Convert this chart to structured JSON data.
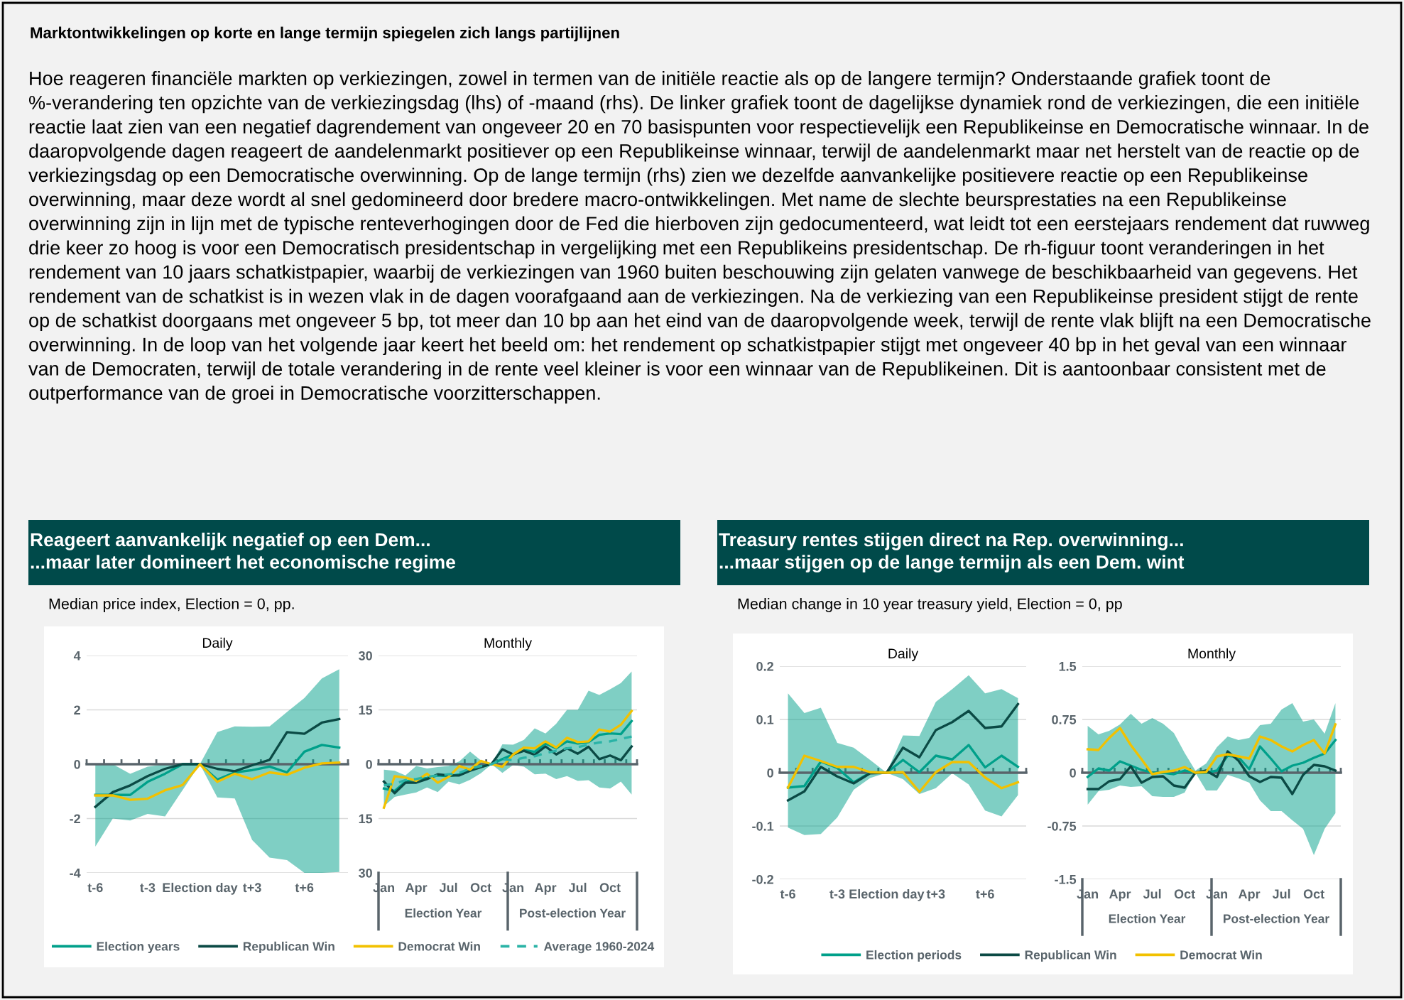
{
  "chart_data": [
    {
      "type": "other",
      "title": "Marktontwikkelingen op korte en lange termijn spiegelen zich langs partijlijnen",
      "annotations": [
        "Hoe reageren financiële markten op verkiezingen, zowel in termen van de initiële reactie als op de langere termijn? Onderstaande grafiek toont de %-verandering ten opzichte van de verkiezingsdag (lhs) of -maand (rhs). De linker grafiek toont de dagelijkse dynamiek rond de verkiezingen, die een initiële reactie laat zien van een negatief dagrendement van ongeveer 20 en 70 basispunten voor respectievelijk een Republikeinse en Democratische winnaar. In de daaropvolgende dagen reageert de aandelenmarkt positiever op een Republikeinse winnaar, terwijl de aandelenmarkt maar net herstelt van de reactie op de verkiezingsdag op een Democratische overwinning. Op de lange termijn (rhs) zien we dezelfde aanvankelijke positievere reactie op een Republikeinse overwinning, maar deze wordt al snel gedomineerd door bredere macro-ontwikkelingen. Met name de slechte beursprestaties na een Republikeinse overwinning zijn in lijn met de typische renteverhogingen door de Fed die hierboven zijn gedocumenteerd, wat leidt tot een eerstejaars rendement dat ruwweg drie keer zo hoog is voor een Democratisch presidentschap in vergelijking met een Republikeins presidentschap. De rh-figuur toont veranderingen in het rendement van 10 jaars schatkistpapier, waarbij de verkiezingen van 1960 buiten beschouwing zijn gelaten vanwege de beschikbaarheid van gegevens. Het rendement van de schatkist is in wezen vlak in de dagen voorafgaand aan de verkiezingen. Na de verkiezing van een Republikeinse president stijgt de rente op de schatkist doorgaans met ongeveer 5 bp, tot meer dan 10 bp aan het eind van de daaropvolgende week, terwijl de rente vlak blijft na een Democratische overwinning. In de loop van het volgende jaar keert het beeld om: het rendement op schatkistpapier stijgt met ongeveer 40 bp in het geval van een winnaar van de Democraten, terwijl de totale verandering in de rente veel kleiner is voor een winnaar van de Republikeinen. Dit is aantoonbaar consistent met de outperformance van de groei in Democratische voorzitterschappen."
      ]
    },
    {
      "type": "line",
      "title": "Daily",
      "annotations": [
        "Reageert aanvankelijk negatief op een Dem...\n...maar later domineert het economische regime",
        "Median price index, Election = 0, pp."
      ],
      "categories": [
        "t-6",
        null,
        null,
        "t-3",
        null,
        null,
        "Election day",
        null,
        null,
        "t+3",
        null,
        null,
        "t+6",
        null,
        null
      ],
      "ylim": [
        -4,
        4
      ],
      "yticks": [
        -4,
        -2,
        0,
        2,
        4
      ],
      "grid": "y",
      "line_style": "solid",
      "series": [
        {
          "color": "#00a08a",
          "values": [
            -1.13,
            -1.13,
            -1.13,
            -0.65,
            -0.35,
            0,
            0,
            -0.57,
            -0.3,
            -0.22,
            -0.09,
            -0.3,
            0.46,
            0.71,
            0.61
          ],
          "lower": [
            -3.03,
            -2.0,
            -2.07,
            -1.83,
            -1.92,
            -0.96,
            0,
            -1.22,
            -1.26,
            -2.79,
            -3.44,
            -3.53,
            -4.0,
            -4.0,
            -3.97
          ],
          "upper": [
            0,
            0,
            -0.35,
            -0.09,
            0,
            0,
            0,
            1.18,
            1.39,
            1.38,
            1.39,
            1.92,
            2.44,
            3.16,
            3.5
          ]
        },
        {
          "color": "#0b4a45",
          "values": [
            -1.57,
            -1.03,
            -0.78,
            -0.44,
            -0.17,
            0,
            0,
            -0.17,
            -0.26,
            -0.04,
            0.16,
            1.18,
            1.12,
            1.53,
            1.66
          ]
        },
        {
          "color": "#f2c100",
          "values": [
            -1.15,
            -1.15,
            -1.31,
            -1.27,
            -0.96,
            -0.77,
            0,
            -0.65,
            -0.35,
            -0.55,
            -0.3,
            -0.39,
            -0.13,
            0.03,
            0.06
          ]
        }
      ]
    },
    {
      "type": "line",
      "title": "Monthly",
      "annotations": [
        "Election Year",
        "Post-election Year"
      ],
      "categories": [
        "Jan",
        null,
        null,
        "Apr",
        null,
        null,
        "Jul",
        null,
        null,
        "Oct",
        null,
        null,
        "Jan",
        null,
        null,
        "Apr",
        null,
        null,
        "Jul",
        null,
        null,
        "Oct",
        null,
        null
      ],
      "ylim": [
        -30,
        30
      ],
      "yticks": [
        {
          "value": -30,
          "label": "30"
        },
        {
          "value": -15,
          "label": "15"
        },
        0,
        15,
        30
      ],
      "grid": "y",
      "line_style": "solid",
      "legend": "bottom",
      "series": [
        {
          "name": "Election years",
          "color": "#00a08a",
          "values": [
            -6.7,
            -7.4,
            -4.8,
            -4.3,
            -3.8,
            -3.1,
            -3.3,
            -2.8,
            -1.5,
            -0.7,
            0,
            1.4,
            2.7,
            3.9,
            3.4,
            5.7,
            4.4,
            6.3,
            5.7,
            6.1,
            8.1,
            8.5,
            8.3,
            11.9
          ],
          "lower": [
            -11.6,
            -9.0,
            -8.4,
            -7.8,
            -6.4,
            -7.7,
            -4.8,
            -5.6,
            -4.3,
            -2.5,
            0,
            -2.4,
            -0.2,
            -0.7,
            -2.8,
            -2.6,
            -4.1,
            -3.3,
            -4.6,
            -4.4,
            -6.4,
            -6.7,
            -4.8,
            -8.4
          ],
          "upper": [
            -1.5,
            -1.8,
            -3.1,
            -0.5,
            -1.2,
            -0.8,
            -0.5,
            0.8,
            3.5,
            1.1,
            0,
            5.5,
            5.4,
            6.7,
            9.9,
            8.5,
            11.2,
            15.0,
            15.0,
            20.3,
            19.1,
            20.7,
            22.4,
            25.6
          ]
        },
        {
          "name": "Republican Win",
          "color": "#0b4a45",
          "values": [
            -4.8,
            -8.0,
            -5.1,
            -5.1,
            -4.1,
            -2.8,
            -3.1,
            -3.1,
            -1.8,
            -0.8,
            0.1,
            4.1,
            2.7,
            3.7,
            2.6,
            4.9,
            2.7,
            4.4,
            2.9,
            4.8,
            1.4,
            2.4,
            1.1,
            4.9
          ]
        },
        {
          "name": "Democrat Win",
          "color": "#f2c100",
          "values": [
            -12.0,
            -3.3,
            -3.7,
            -4.6,
            -2.6,
            -5.1,
            -3.5,
            -0.5,
            -1.5,
            0.9,
            0,
            -0.7,
            2.7,
            4.6,
            4.4,
            6.3,
            4.6,
            7.3,
            6.1,
            6.3,
            9.6,
            9.0,
            10.9,
            14.7
          ]
        },
        {
          "name": "Average 1960-2024",
          "color": "#2ab3a6",
          "line_style": "dashed",
          "values": [
            -5.8,
            -5.4,
            -4.4,
            -4.1,
            -3.5,
            -3.1,
            -2.8,
            -2.4,
            -1.2,
            -0.5,
            0,
            1.4,
            1.1,
            1.8,
            2.2,
            3.1,
            3.7,
            4.4,
            4.7,
            5.4,
            6.0,
            6.3,
            7.0,
            7.6
          ]
        }
      ]
    },
    {
      "type": "line",
      "title": "Daily",
      "annotations": [
        "Treasury rentes stijgen direct na Rep. overwinning...\n...maar stijgen op de lange termijn als een Dem. wint",
        "Median change in 10 year treasury yield, Election = 0, pp"
      ],
      "categories": [
        "t-6",
        null,
        null,
        "t-3",
        null,
        null,
        "Election day",
        null,
        null,
        "t+3",
        null,
        null,
        "t+6",
        null,
        null
      ],
      "ylim": [
        -0.2,
        0.2
      ],
      "yticks": [
        -0.2,
        -0.1,
        0,
        0.1,
        0.2
      ],
      "grid": "y",
      "line_style": "solid",
      "series": [
        {
          "color": "#00a08a",
          "values": [
            -0.028,
            -0.025,
            0.021,
            0.009,
            -0.018,
            0,
            0,
            0.024,
            0.001,
            0.032,
            0.025,
            0.052,
            0.01,
            0.032,
            0.011
          ],
          "lower": [
            -0.103,
            -0.117,
            -0.115,
            -0.084,
            -0.032,
            -0.01,
            0,
            -0.012,
            -0.04,
            -0.029,
            -0.001,
            -0.022,
            -0.071,
            -0.082,
            -0.042
          ],
          "upper": [
            0.149,
            0.112,
            0.122,
            0.056,
            0.047,
            0.024,
            0,
            0.07,
            0.069,
            0.133,
            0.157,
            0.183,
            0.149,
            0.157,
            0.14
          ]
        },
        {
          "color": "#0b4a45",
          "values": [
            -0.052,
            -0.035,
            0.011,
            -0.007,
            -0.02,
            -0.001,
            0,
            0.047,
            0.029,
            0.08,
            0.095,
            0.116,
            0.084,
            0.087,
            0.129
          ]
        },
        {
          "color": "#f2c100",
          "values": [
            -0.028,
            0.032,
            0.022,
            0.011,
            0.011,
            0.001,
            0,
            0.001,
            -0.036,
            0.001,
            0.02,
            0.02,
            -0.009,
            -0.029,
            -0.018
          ]
        }
      ]
    },
    {
      "type": "line",
      "title": "Monthly",
      "annotations": [
        "Election Year",
        "Post-election Year"
      ],
      "categories": [
        "Jan",
        null,
        null,
        "Apr",
        null,
        null,
        "Jul",
        null,
        null,
        "Oct",
        null,
        null,
        "Jan",
        null,
        null,
        "Apr",
        null,
        null,
        "Jul",
        null,
        null,
        "Oct",
        null,
        null
      ],
      "ylim": [
        -1.5,
        1.5
      ],
      "yticks": [
        -1.5,
        -0.75,
        0,
        0.75,
        1.5
      ],
      "grid": "y",
      "line_style": "solid",
      "legend": "bottom",
      "series": [
        {
          "name": "Election periods",
          "color": "#00a08a",
          "values": [
            -0.06,
            0.06,
            0.03,
            0.16,
            0.1,
            0.04,
            0,
            0,
            -0.02,
            0.03,
            0,
            0,
            0.03,
            0.24,
            0.22,
            0.05,
            0.37,
            0.2,
            0.02,
            0.1,
            0.14,
            0.21,
            0.27,
            0.46
          ],
          "lower": [
            -0.45,
            -0.26,
            -0.24,
            -0.18,
            -0.2,
            -0.19,
            -0.33,
            -0.34,
            -0.34,
            -0.28,
            0,
            -0.25,
            -0.25,
            -0.03,
            -0.08,
            -0.14,
            -0.39,
            -0.54,
            -0.54,
            -0.67,
            -0.79,
            -1.16,
            -0.79,
            -0.57
          ],
          "upper": [
            0.66,
            0.54,
            0.59,
            0.68,
            0.83,
            0.69,
            0.77,
            0.69,
            0.56,
            0.28,
            0.03,
            0.13,
            0.36,
            0.51,
            0.46,
            0.49,
            0.67,
            0.69,
            0.89,
            0.98,
            0.72,
            0.75,
            0.55,
            0.98
          ]
        },
        {
          "name": "Republican Win",
          "color": "#0b4a45",
          "values": [
            -0.23,
            -0.23,
            -0.12,
            -0.09,
            0.09,
            -0.14,
            -0.06,
            -0.05,
            -0.18,
            -0.21,
            0,
            0.03,
            -0.06,
            0.3,
            0.17,
            -0.05,
            -0.13,
            -0.06,
            -0.07,
            -0.3,
            -0.03,
            0.11,
            0.09,
            0.03
          ]
        },
        {
          "name": "Democrat Win",
          "color": "#f2c100",
          "values": [
            0.33,
            0.32,
            0.49,
            0.63,
            0.39,
            0.19,
            -0.02,
            0.01,
            0.03,
            0.08,
            0,
            0.01,
            0.23,
            0.26,
            0.23,
            0.2,
            0.51,
            0.46,
            0.37,
            0.3,
            0.39,
            0.46,
            0.27,
            0.68
          ]
        }
      ]
    }
  ]
}
